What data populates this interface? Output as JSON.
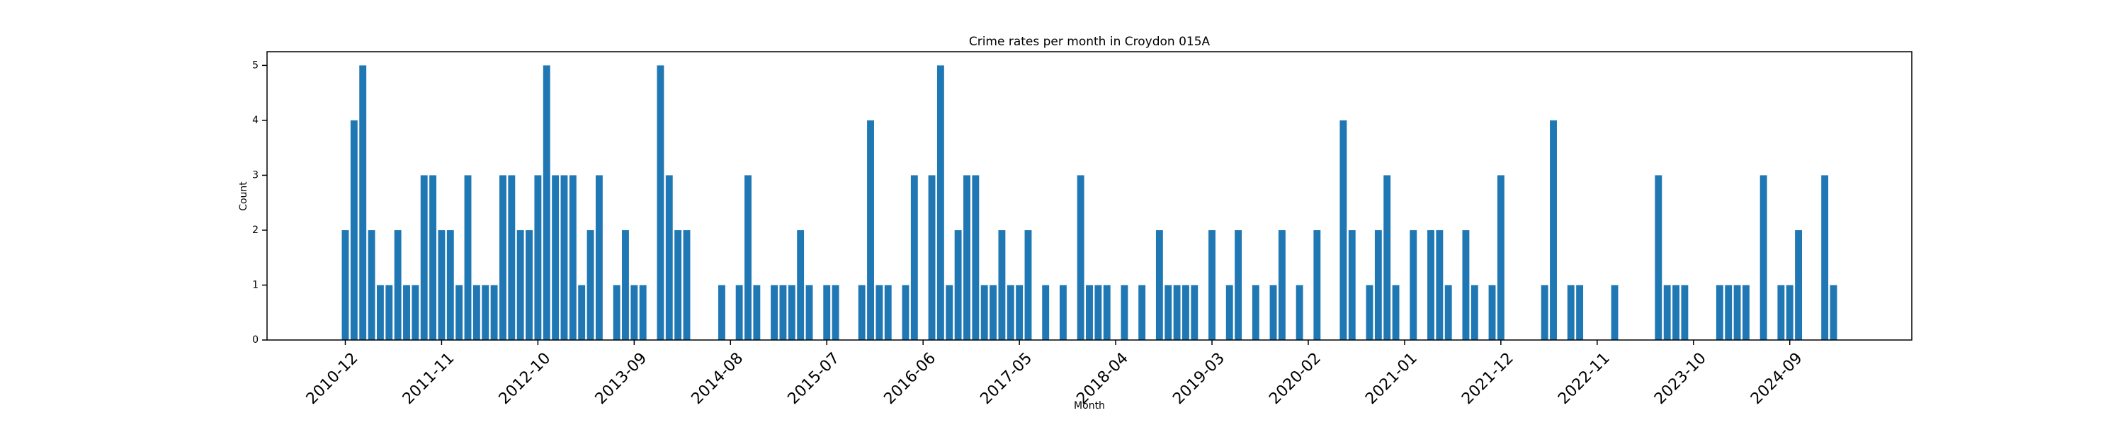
{
  "chart_data": {
    "type": "bar",
    "title": "Crime rates per month in Croydon 015A",
    "xlabel": "Month",
    "ylabel": "Count",
    "color": "#1f77b4",
    "categories": [
      "2010-12",
      null,
      null,
      null,
      null,
      null,
      null,
      null,
      null,
      null,
      null,
      "2011-11",
      null,
      null,
      null,
      null,
      null,
      null,
      null,
      null,
      null,
      null,
      "2012-10",
      null,
      null,
      null,
      null,
      null,
      null,
      null,
      null,
      null,
      null,
      "2013-09",
      null,
      null,
      null,
      null,
      null,
      null,
      null,
      null,
      null,
      null,
      "2014-08",
      null,
      null,
      null,
      null,
      null,
      null,
      null,
      null,
      null,
      null,
      "2015-07",
      null,
      null,
      null,
      null,
      null,
      null,
      null,
      null,
      null,
      null,
      "2016-06",
      null,
      null,
      null,
      null,
      null,
      null,
      null,
      null,
      null,
      null,
      "2017-05",
      null,
      null,
      null,
      null,
      null,
      null,
      null,
      null,
      null,
      null,
      "2018-04",
      null,
      null,
      null,
      null,
      null,
      null,
      null,
      null,
      null,
      null,
      "2019-03",
      null,
      null,
      null,
      null,
      null,
      null,
      null,
      null,
      null,
      null,
      "2020-02",
      null,
      null,
      null,
      null,
      null,
      null,
      null,
      null,
      null,
      null,
      "2021-01",
      null,
      null,
      null,
      null,
      null,
      null,
      null,
      null,
      null,
      null,
      "2021-12",
      null,
      null,
      null,
      null,
      null,
      null,
      null,
      null,
      null,
      null,
      "2022-11",
      null,
      null,
      null,
      null,
      null,
      null,
      null,
      null,
      null,
      null,
      "2023-10",
      null,
      null,
      null,
      null,
      null,
      null,
      null,
      null,
      null,
      null,
      "2024-09",
      null,
      null,
      null,
      null,
      null
    ],
    "values": [
      2,
      4,
      5,
      2,
      1,
      1,
      2,
      1,
      1,
      3,
      3,
      2,
      2,
      1,
      3,
      1,
      1,
      1,
      3,
      3,
      2,
      2,
      3,
      5,
      3,
      3,
      3,
      1,
      2,
      3,
      null,
      1,
      2,
      1,
      1,
      null,
      5,
      3,
      2,
      2,
      null,
      null,
      null,
      1,
      null,
      1,
      3,
      1,
      null,
      1,
      1,
      1,
      2,
      1,
      null,
      1,
      1,
      null,
      null,
      1,
      4,
      1,
      1,
      null,
      1,
      3,
      null,
      3,
      5,
      1,
      2,
      3,
      3,
      1,
      1,
      2,
      1,
      1,
      2,
      null,
      1,
      null,
      1,
      null,
      3,
      1,
      1,
      1,
      null,
      1,
      null,
      1,
      null,
      2,
      1,
      1,
      1,
      1,
      null,
      2,
      null,
      1,
      2,
      null,
      1,
      null,
      1,
      2,
      null,
      1,
      null,
      2,
      null,
      null,
      4,
      2,
      null,
      1,
      2,
      3,
      1,
      null,
      2,
      null,
      2,
      2,
      1,
      null,
      2,
      1,
      null,
      1,
      3,
      null,
      null,
      null,
      null,
      1,
      4,
      null,
      1,
      1,
      null,
      null,
      null,
      1,
      null,
      null,
      null,
      null,
      3,
      1,
      1,
      1,
      null,
      null,
      null,
      1,
      1,
      1,
      1,
      null,
      3,
      null,
      1,
      1,
      2,
      null,
      null,
      3,
      1
    ],
    "ylim": [
      0,
      5.25
    ],
    "yticks": [
      0,
      1,
      2,
      3,
      4,
      5
    ]
  }
}
